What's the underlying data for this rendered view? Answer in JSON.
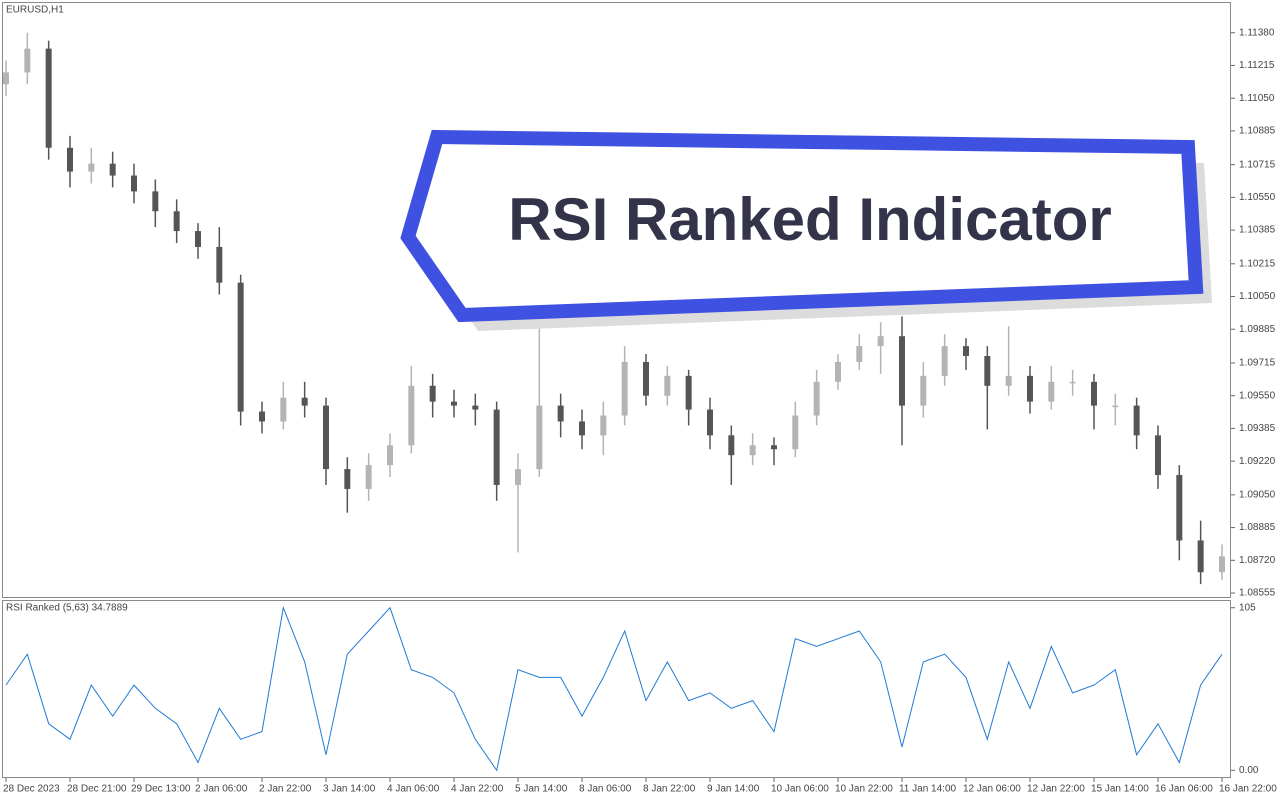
{
  "chart_data": [
    {
      "type": "candlestick",
      "title": "EURUSD,H1",
      "x": [
        "28 Dec 2023",
        null,
        null,
        "28 Dec 21:00",
        null,
        null,
        "29 Dec 13:00",
        null,
        null,
        "2 Jan 06:00",
        null,
        null,
        "2 Jan 22:00",
        null,
        null,
        "3 Jan 14:00",
        null,
        null,
        "4 Jan 06:00",
        null,
        null,
        "4 Jan 22:00",
        null,
        null,
        "5 Jan 14:00",
        null,
        null,
        "8 Jan 06:00",
        null,
        null,
        "8 Jan 22:00",
        null,
        null,
        "9 Jan 14:00",
        null,
        null,
        "10 Jan 06:00",
        null,
        null,
        "10 Jan 22:00",
        null,
        null,
        "11 Jan 14:00",
        null,
        null,
        "12 Jan 06:00",
        null,
        null,
        "12 Jan 22:00",
        null,
        null,
        "15 Jan 14:00",
        null,
        null,
        "16 Jan 06:00",
        null,
        null,
        "16 Jan 22:00"
      ],
      "open": [
        1.1112,
        1.1118,
        1.113,
        1.108,
        1.1068,
        1.1072,
        1.1066,
        1.1058,
        1.1048,
        1.1038,
        1.103,
        1.1012,
        1.0947,
        1.0942,
        1.0954,
        1.095,
        1.0918,
        1.0908,
        1.092,
        1.093,
        1.096,
        1.0952,
        1.095,
        1.0948,
        1.091,
        1.0918,
        1.095,
        1.0942,
        1.0935,
        1.0945,
        1.0972,
        1.0955,
        1.0965,
        1.0948,
        1.0935,
        1.0925,
        1.093,
        1.0928,
        1.0945,
        1.0962,
        1.0972,
        1.098,
        1.0985,
        1.095,
        1.0965,
        1.098,
        1.0975,
        1.096,
        1.0965,
        1.0952,
        1.0962,
        1.0962,
        1.095,
        1.095,
        1.0935,
        1.0915,
        1.0882,
        1.0866
      ],
      "high": [
        1.1124,
        1.1138,
        1.1134,
        1.1086,
        1.108,
        1.1078,
        1.1072,
        1.1064,
        1.1054,
        1.1042,
        1.104,
        1.1016,
        1.0952,
        1.0962,
        1.0962,
        1.0954,
        1.0924,
        1.0926,
        1.0936,
        1.097,
        1.0966,
        1.0958,
        1.0956,
        1.0952,
        1.0926,
        1.0996,
        1.0956,
        1.0948,
        1.0952,
        1.098,
        1.0976,
        1.097,
        1.0968,
        1.0954,
        1.094,
        1.0936,
        1.0934,
        1.0952,
        1.0968,
        1.0976,
        1.0986,
        1.0992,
        1.0995,
        1.0972,
        1.0986,
        1.0984,
        1.098,
        1.099,
        1.097,
        1.097,
        1.0968,
        1.0966,
        1.0956,
        1.0954,
        1.094,
        1.092,
        1.0892,
        1.088
      ],
      "low": [
        1.1106,
        1.1112,
        1.1074,
        1.106,
        1.1062,
        1.106,
        1.1052,
        1.104,
        1.1032,
        1.1024,
        1.1006,
        1.094,
        1.0936,
        1.0938,
        1.0944,
        1.091,
        1.0896,
        1.0902,
        1.0914,
        1.0926,
        1.0944,
        1.0944,
        1.094,
        1.0902,
        1.0876,
        1.0914,
        1.0934,
        1.0928,
        1.0925,
        1.094,
        1.095,
        1.095,
        1.094,
        1.0928,
        1.091,
        1.092,
        1.092,
        1.0924,
        1.094,
        1.0958,
        1.0968,
        1.0966,
        1.093,
        1.0944,
        1.096,
        1.0968,
        1.0938,
        1.0955,
        1.0946,
        1.0948,
        1.0955,
        1.0938,
        1.094,
        1.0928,
        1.0908,
        1.0872,
        1.086,
        1.0862
      ],
      "close": [
        1.1118,
        1.113,
        1.108,
        1.1068,
        1.1072,
        1.1066,
        1.1058,
        1.1048,
        1.1038,
        1.103,
        1.1012,
        1.0947,
        1.0942,
        1.0954,
        1.095,
        1.0918,
        1.0908,
        1.092,
        1.093,
        1.096,
        1.0952,
        1.095,
        1.0948,
        1.091,
        1.0918,
        1.095,
        1.0942,
        1.0935,
        1.0945,
        1.0972,
        1.0955,
        1.0965,
        1.0948,
        1.0935,
        1.0925,
        1.093,
        1.0928,
        1.0945,
        1.0962,
        1.0972,
        1.098,
        1.0985,
        1.095,
        1.0965,
        1.098,
        1.0975,
        1.096,
        1.0965,
        1.0952,
        1.0962,
        1.0962,
        1.095,
        1.095,
        1.0935,
        1.0915,
        1.0882,
        1.0866,
        1.0874
      ],
      "up_color": "#b4b4b4",
      "down_color": "#555555",
      "ylim": [
        1.08535,
        1.11535
      ],
      "yticks": [
        {
          "value": 1.1138,
          "label": "1.11380"
        },
        1.11215,
        {
          "value": 1.1105,
          "label": "1.11050"
        },
        1.10885,
        1.10715,
        {
          "value": 1.1055,
          "label": "1.10550"
        },
        1.10385,
        1.10215,
        {
          "value": 1.1005,
          "label": "1.10050"
        },
        1.09885,
        1.09715,
        {
          "value": 1.0955,
          "label": "1.09550"
        },
        1.09385,
        {
          "value": 1.0922,
          "label": "1.09220"
        },
        {
          "value": 1.0905,
          "label": "1.09050"
        },
        1.08885,
        {
          "value": 1.0872,
          "label": "1.08720"
        },
        1.08555
      ],
      "annotation": "RSI Ranked Indicator"
    },
    {
      "type": "line",
      "title": "RSI Ranked (5,63) 34.7889",
      "color": "#1f7ad4",
      "values": [
        55,
        75,
        30,
        20,
        55,
        35,
        55,
        40,
        30,
        5,
        40,
        20,
        25,
        105,
        70,
        10,
        75,
        90,
        105,
        65,
        60,
        50,
        20,
        0,
        65,
        60,
        60,
        35,
        60,
        90,
        45,
        70,
        45,
        50,
        40,
        45,
        25,
        85,
        80,
        85,
        90,
        70,
        15,
        70,
        75,
        60,
        20,
        70,
        40,
        80,
        50,
        55,
        65,
        10,
        30,
        5,
        55,
        75
      ],
      "ylim": [
        -5,
        110
      ],
      "yticks": [
        105,
        {
          "value": 0,
          "label": "0.00"
        }
      ]
    }
  ]
}
